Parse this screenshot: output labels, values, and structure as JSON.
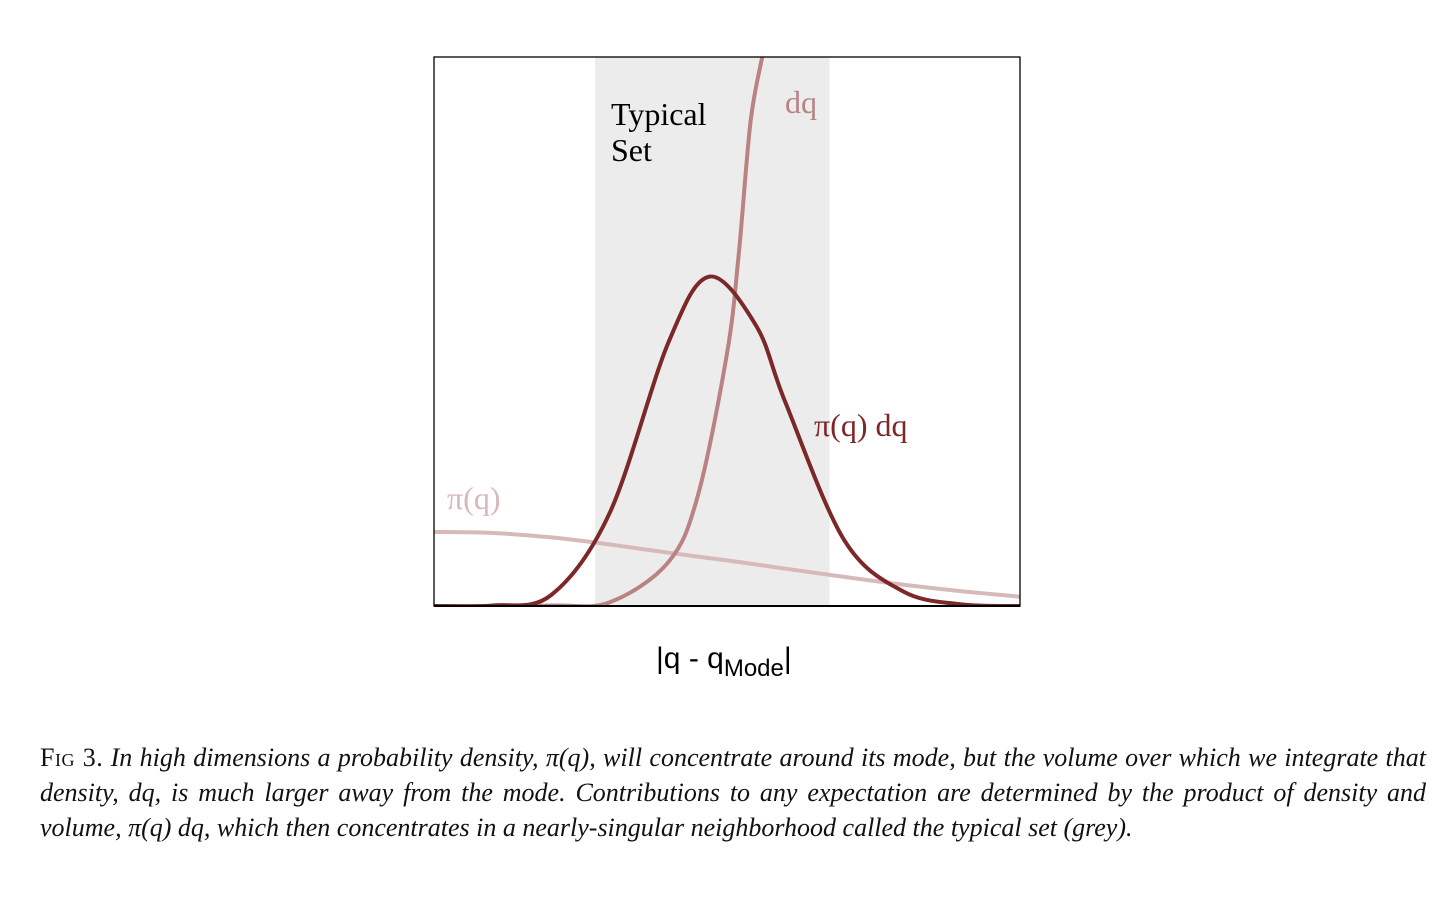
{
  "chart_data": {
    "type": "line",
    "xlabel_main": "|q - q",
    "xlabel_sub": "Mode",
    "xlabel_end": "|",
    "band_label_line1": "Typical",
    "band_label_line2": "Set",
    "grid": false,
    "typical_set": [
      0.275,
      0.675
    ],
    "xlim": [
      0,
      1
    ],
    "ylim": [
      0,
      1
    ],
    "series": [
      {
        "name": "π(q)",
        "color": "#d8b9b9",
        "x": [
          0,
          0.1,
          0.2,
          0.3,
          0.4,
          0.5,
          0.6,
          0.7,
          0.8,
          0.9,
          1.0
        ],
        "y": [
          0.135,
          0.133,
          0.125,
          0.112,
          0.097,
          0.083,
          0.068,
          0.053,
          0.039,
          0.027,
          0.017
        ]
      },
      {
        "name": "dq",
        "color": "#b98383",
        "x": [
          0,
          0.2,
          0.3,
          0.4,
          0.45,
          0.5,
          0.52,
          0.54,
          0.56
        ],
        "y": [
          0,
          0.001,
          0.007,
          0.08,
          0.2,
          0.46,
          0.64,
          0.88,
          1.0
        ]
      },
      {
        "name": "π(q) dq",
        "color": "#7d2828",
        "x": [
          0,
          0.1,
          0.2,
          0.3,
          0.4,
          0.47,
          0.55,
          0.6,
          0.7,
          0.8,
          0.9,
          1.0
        ],
        "y": [
          0,
          0.001,
          0.02,
          0.17,
          0.48,
          0.6,
          0.51,
          0.37,
          0.12,
          0.027,
          0.003,
          0.0
        ]
      }
    ]
  },
  "caption": {
    "fig_id": "Fig 3.",
    "text": "In high dimensions a probability density, π(q), will concentrate around its mode, but the volume over which we integrate that density, dq, is much larger away from the mode. Contributions to any expectation are determined by the product of density and volume, π(q) dq, which then concentrates in a nearly-singular neighborhood called the typical set (grey)."
  },
  "colors": {
    "band": "#ececec",
    "density": "#d8b9b9",
    "volume": "#b98383",
    "product": "#7d2828"
  }
}
